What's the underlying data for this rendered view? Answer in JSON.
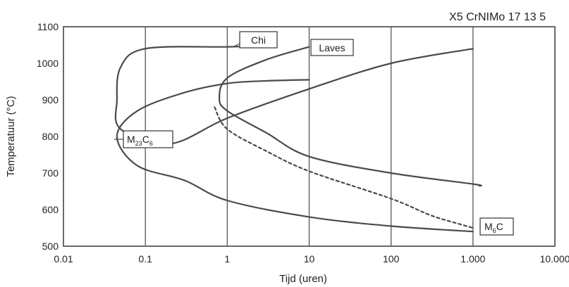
{
  "steel_grade": "X5 CrNIMo 17 13 5",
  "axes": {
    "xlabel": "Tijd (uren)",
    "ylabel": "Temperatuur (°C)",
    "x_ticks": [
      "0.01",
      "0.1",
      "1",
      "10",
      "100",
      "1.000",
      "10.000"
    ],
    "y_ticks": [
      "500",
      "600",
      "700",
      "800",
      "900",
      "1000",
      "1100"
    ]
  },
  "phases": {
    "chi": "Chi",
    "laves": "Laves",
    "m23c6": {
      "base": "M",
      "sub1": "23",
      "mid": "C",
      "sub2": "6"
    },
    "m6c": {
      "base": "M",
      "sub1": "6",
      "mid": "C"
    }
  },
  "chart_data": {
    "type": "line",
    "x_scale": "log",
    "xlim": [
      0.01,
      10000
    ],
    "ylim": [
      500,
      1100
    ],
    "grid": "vertical lines at each decade",
    "series": [
      {
        "name": "Chi",
        "style": "solid",
        "points": [
          [
            1000,
            1040
          ],
          [
            100,
            1000
          ],
          [
            10,
            930
          ],
          [
            1,
            850
          ],
          [
            0.2,
            780
          ],
          [
            0.05,
            820
          ],
          [
            0.045,
            900
          ],
          [
            0.05,
            990
          ],
          [
            0.1,
            1040
          ],
          [
            1,
            1045
          ],
          [
            3,
            1048
          ]
        ]
      },
      {
        "name": "Laves",
        "style": "solid",
        "points": [
          [
            10,
            1045
          ],
          [
            3,
            1010
          ],
          [
            1,
            960
          ],
          [
            0.8,
            905
          ],
          [
            1,
            870
          ],
          [
            3,
            810
          ],
          [
            10,
            745
          ],
          [
            100,
            700
          ],
          [
            1000,
            670
          ],
          [
            1200,
            665
          ]
        ]
      },
      {
        "name": "M23C6",
        "style": "solid",
        "points": [
          [
            1000,
            540
          ],
          [
            100,
            555
          ],
          [
            10,
            580
          ],
          [
            1,
            625
          ],
          [
            0.3,
            680
          ],
          [
            0.08,
            720
          ],
          [
            0.045,
            800
          ],
          [
            0.08,
            870
          ],
          [
            0.3,
            920
          ],
          [
            1,
            945
          ],
          [
            3,
            952
          ],
          [
            10,
            955
          ]
        ]
      },
      {
        "name": "M6C",
        "style": "dashed",
        "points": [
          [
            0.7,
            880
          ],
          [
            1,
            820
          ],
          [
            3,
            760
          ],
          [
            10,
            705
          ],
          [
            100,
            630
          ],
          [
            300,
            585
          ],
          [
            700,
            560
          ],
          [
            1000,
            550
          ]
        ]
      }
    ]
  }
}
